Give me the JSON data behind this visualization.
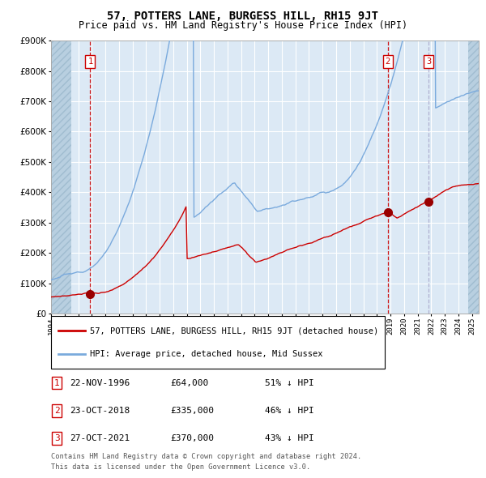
{
  "title": "57, POTTERS LANE, BURGESS HILL, RH15 9JT",
  "subtitle": "Price paid vs. HM Land Registry's House Price Index (HPI)",
  "legend_label_red": "57, POTTERS LANE, BURGESS HILL, RH15 9JT (detached house)",
  "legend_label_blue": "HPI: Average price, detached house, Mid Sussex",
  "footer_line1": "Contains HM Land Registry data © Crown copyright and database right 2024.",
  "footer_line2": "This data is licensed under the Open Government Licence v3.0.",
  "transactions": [
    {
      "num": 1,
      "date": "22-NOV-1996",
      "price": 64000,
      "pct": "51%",
      "direction": "↓",
      "x_year": 1996.89
    },
    {
      "num": 2,
      "date": "23-OCT-2018",
      "price": 335000,
      "pct": "46%",
      "direction": "↓",
      "x_year": 2018.81
    },
    {
      "num": 3,
      "date": "27-OCT-2021",
      "price": 370000,
      "pct": "43%",
      "direction": "↓",
      "x_year": 2021.82
    }
  ],
  "ylim": [
    0,
    900000
  ],
  "xlim_start": 1994.0,
  "xlim_end": 2025.5,
  "plot_bg_color": "#dce9f5",
  "hatch_color": "#b8cfe0",
  "grid_color": "#ffffff",
  "red_line_color": "#cc0000",
  "blue_line_color": "#7aaadd",
  "vline_red_color": "#cc0000",
  "vline_blue_color": "#aaaacc",
  "marker_color": "#990000",
  "box_color": "#cc0000",
  "hatch_left_end": 1995.5,
  "hatch_right_start": 2024.75
}
